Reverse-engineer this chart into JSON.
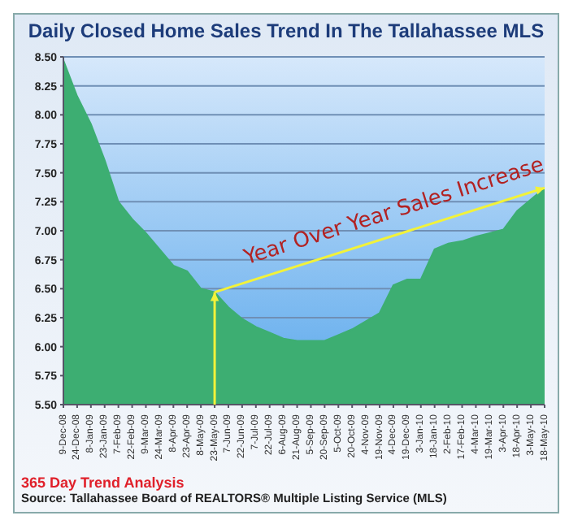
{
  "chart_data": {
    "type": "area",
    "title": "Daily Closed Home Sales Trend In The Tallahassee MLS",
    "categories": [
      "9-Dec-08",
      "24-Dec-08",
      "8-Jan-09",
      "23-Jan-09",
      "7-Feb-09",
      "22-Feb-09",
      "9-Mar-09",
      "24-Mar-09",
      "8-Apr-09",
      "23-Apr-09",
      "8-May-09",
      "23-May-09",
      "7-Jun-09",
      "22-Jun-09",
      "7-Jul-09",
      "22-Jul-09",
      "6-Aug-09",
      "21-Aug-09",
      "5-Sep-09",
      "20-Sep-09",
      "5-Oct-09",
      "20-Oct-09",
      "4-Nov-09",
      "19-Nov-09",
      "4-Dec-09",
      "19-Dec-09",
      "3-Jan-10",
      "18-Jan-10",
      "2-Feb-10",
      "17-Feb-10",
      "4-Mar-10",
      "19-Mar-10",
      "3-Apr-10",
      "18-Apr-10",
      "3-May-10",
      "18-May-10"
    ],
    "series": [
      {
        "color": "#3dae72",
        "values": [
          8.47,
          8.16,
          7.92,
          7.61,
          7.25,
          7.1,
          6.98,
          6.84,
          6.7,
          6.65,
          6.5,
          6.47,
          6.34,
          6.24,
          6.17,
          6.12,
          6.07,
          6.05,
          6.05,
          6.05,
          6.1,
          6.15,
          6.22,
          6.29,
          6.53,
          6.58,
          6.58,
          6.84,
          6.89,
          6.91,
          6.95,
          6.98,
          7.01,
          7.17,
          7.27,
          7.37
        ]
      }
    ],
    "ylim": [
      5.5,
      8.5
    ],
    "yticks": [
      {
        "value": 5.5,
        "label": "5.50"
      },
      {
        "value": 5.75,
        "label": "5.75"
      },
      {
        "value": 6,
        "label": "6.00"
      },
      {
        "value": 6.25,
        "label": "6.25"
      },
      {
        "value": 6.5,
        "label": "6.50"
      },
      {
        "value": 6.75,
        "label": "6.75"
      },
      {
        "value": 7,
        "label": "7.00"
      },
      {
        "value": 7.25,
        "label": "7.25"
      },
      {
        "value": 7.5,
        "label": "7.50"
      },
      {
        "value": 7.75,
        "label": "7.75"
      },
      {
        "value": 8,
        "label": "8.00"
      },
      {
        "value": 8.25,
        "label": "8.25"
      },
      {
        "value": 8.5,
        "label": "8.50"
      }
    ],
    "grid": "y",
    "legend": false,
    "annotations": [
      {
        "text": "Year Over Year Sales Increase",
        "x": "23-May-09",
        "y": 6.47
      },
      "365 Day Trend Analysis",
      "Source: Tallahassee Board of REALTORS® Multiple Listing Service (MLS)"
    ]
  }
}
